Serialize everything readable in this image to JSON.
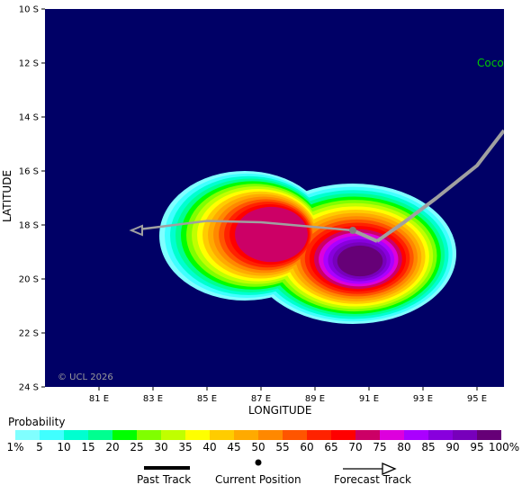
{
  "map": {
    "latitude_labels": [
      "10 S",
      "12 S",
      "14 S",
      "16 S",
      "18 S",
      "20 S",
      "22 S",
      "24 S"
    ],
    "longitude_labels": [
      "81 E",
      "83 E",
      "85 E",
      "87 E",
      "89 E",
      "91 E",
      "93 E",
      "95 E"
    ],
    "lat_axis_title": "LATITUDE",
    "lon_axis_title": "LONGITUDE",
    "place_label": "Coco",
    "copyright": "© UCL 2026",
    "background_color": "#000066",
    "place_label_color": "#00cc00"
  },
  "track": {
    "past_track_color": "#a0a0a0",
    "past_track": [
      {
        "lon": 96.0,
        "lat": 14.5
      },
      {
        "lon": 95.0,
        "lat": 15.8
      },
      {
        "lon": 93.5,
        "lat": 17.0
      },
      {
        "lon": 92.3,
        "lat": 17.9
      },
      {
        "lon": 91.3,
        "lat": 18.6
      }
    ],
    "current_position": {
      "lon": 90.4,
      "lat": 18.2
    },
    "forecast_track": [
      {
        "lon": 90.4,
        "lat": 18.2
      },
      {
        "lon": 87.0,
        "lat": 17.9
      },
      {
        "lon": 85.0,
        "lat": 17.85
      },
      {
        "lon": 82.2,
        "lat": 18.2
      }
    ]
  },
  "legend": {
    "title": "Probability",
    "labels": [
      "1%",
      "5",
      "10",
      "15",
      "20",
      "25",
      "30",
      "35",
      "40",
      "45",
      "50",
      "55",
      "60",
      "65",
      "70",
      "75",
      "80",
      "85",
      "90",
      "95",
      "100%"
    ],
    "colors": [
      "#80ffff",
      "#40ffff",
      "#00ffd0",
      "#00ff90",
      "#00ff00",
      "#80ff00",
      "#c0ff00",
      "#ffff00",
      "#ffcc00",
      "#ffaa00",
      "#ff8800",
      "#ff5500",
      "#ff2200",
      "#ff0000",
      "#cc0066",
      "#dd00dd",
      "#aa00ff",
      "#8800dd",
      "#7700bb",
      "#660077"
    ],
    "past_track_label": "Past Track",
    "current_position_label": "Current Position",
    "forecast_track_label": "Forecast Track"
  }
}
